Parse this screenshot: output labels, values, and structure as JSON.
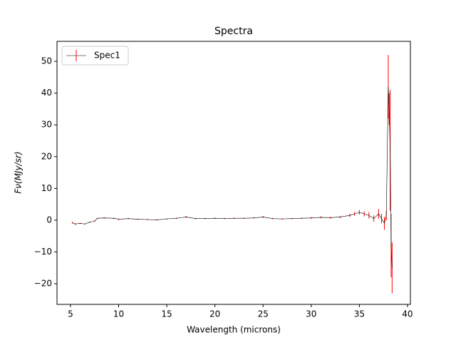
{
  "chart_data": {
    "type": "errorbar-line",
    "title": "Spectra",
    "x_label": "Wavelength (microns)",
    "y_label": "Fν(MJy/sr)",
    "x": [
      5.2,
      5.5,
      6,
      6.5,
      7,
      7.5,
      7.8,
      8.5,
      9.5,
      10,
      11,
      12,
      13,
      14,
      15,
      16,
      17,
      18,
      19,
      20,
      21,
      22,
      23,
      24,
      25,
      26,
      27,
      28,
      29,
      30,
      31,
      32,
      33,
      34,
      34.5,
      35,
      35.5,
      36,
      36.5,
      37,
      37.3,
      37.6,
      37.8,
      38.0,
      38.1,
      38.2,
      38.3,
      38.4
    ],
    "series": [
      {
        "name": "Spec1",
        "color": "#ff0000",
        "line_color": "#000000",
        "values": [
          -0.8,
          -1.2,
          -1.0,
          -1.2,
          -0.6,
          -0.3,
          0.6,
          0.7,
          0.6,
          0.3,
          0.5,
          0.3,
          0.2,
          0.1,
          0.4,
          0.6,
          1.0,
          0.5,
          0.5,
          0.6,
          0.5,
          0.6,
          0.6,
          0.7,
          1.0,
          0.5,
          0.4,
          0.5,
          0.6,
          0.7,
          0.9,
          0.8,
          1.0,
          1.5,
          2.0,
          2.5,
          2.0,
          1.5,
          0.5,
          2.0,
          0.5,
          -1.0,
          1.5,
          42,
          35,
          22,
          -8,
          -15
        ],
        "errors": [
          0.3,
          0.3,
          0.2,
          0.2,
          0.2,
          0.2,
          0.2,
          0.2,
          0.2,
          0.2,
          0.2,
          0.2,
          0.2,
          0.2,
          0.2,
          0.2,
          0.3,
          0.2,
          0.2,
          0.2,
          0.2,
          0.2,
          0.2,
          0.2,
          0.3,
          0.2,
          0.2,
          0.2,
          0.2,
          0.3,
          0.3,
          0.3,
          0.3,
          0.5,
          0.6,
          0.7,
          0.8,
          1.0,
          1.0,
          1.5,
          1.5,
          2.0,
          1.5,
          10,
          5,
          19,
          10,
          8
        ]
      }
    ],
    "xlim": [
      3.6,
      40.3
    ],
    "ylim": [
      -26.5,
      56.3
    ],
    "xticks": [
      5,
      10,
      15,
      20,
      25,
      30,
      35,
      40
    ],
    "yticks": [
      {
        "value": -20,
        "label": "−20"
      },
      {
        "value": -10,
        "label": "−10"
      },
      0,
      10,
      20,
      30,
      40,
      50
    ],
    "legend": "upper left"
  }
}
